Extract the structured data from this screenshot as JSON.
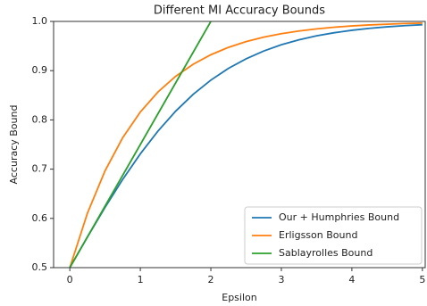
{
  "chart_data": {
    "type": "line",
    "title": "Different MI Accuracy Bounds",
    "x_label": "Epsilon",
    "y_label": "Accuracy Bound",
    "x": [
      0,
      0.25,
      0.5,
      0.75,
      1,
      1.25,
      1.5,
      1.75,
      2,
      2.25,
      2.5,
      2.75,
      3,
      3.25,
      3.5,
      3.75,
      4,
      4.25,
      4.5,
      4.75,
      5
    ],
    "series": [
      {
        "name": "Our + Humphries Bound",
        "color": "#1f77b4",
        "values": [
          0.5,
          0.5622,
          0.6225,
          0.6792,
          0.7311,
          0.7773,
          0.8176,
          0.852,
          0.8808,
          0.9047,
          0.9241,
          0.9399,
          0.9526,
          0.9627,
          0.9707,
          0.977,
          0.982,
          0.9859,
          0.989,
          0.9914,
          0.9933
        ]
      },
      {
        "name": "Erligsson Bound",
        "color": "#ff7f0e",
        "values": [
          0.5,
          0.6106,
          0.6967,
          0.7638,
          0.8161,
          0.8567,
          0.8884,
          0.9131,
          0.9323,
          0.9473,
          0.959,
          0.968,
          0.9751,
          0.9806,
          0.9849,
          0.9882,
          0.9908,
          0.9929,
          0.9944,
          0.9957,
          0.9966
        ]
      },
      {
        "name": "Sablayrolles Bound",
        "color": "#2ca02c",
        "values": [
          0.5,
          0.5625,
          0.625,
          0.6875,
          0.75,
          0.8125,
          0.875,
          0.9375,
          1.0,
          null,
          null,
          null,
          null,
          null,
          null,
          null,
          null,
          null,
          null,
          null,
          null
        ]
      }
    ],
    "xlim": [
      -0.23,
      5.04
    ],
    "ylim": [
      0.5,
      1.0
    ],
    "xticks": [
      0,
      1,
      2,
      3,
      4,
      5
    ],
    "yticks": [
      0.5,
      0.6,
      0.7,
      0.8,
      0.9,
      {
        "value": 1,
        "label": "1.0"
      }
    ],
    "legend": "lower right",
    "grid": false
  }
}
